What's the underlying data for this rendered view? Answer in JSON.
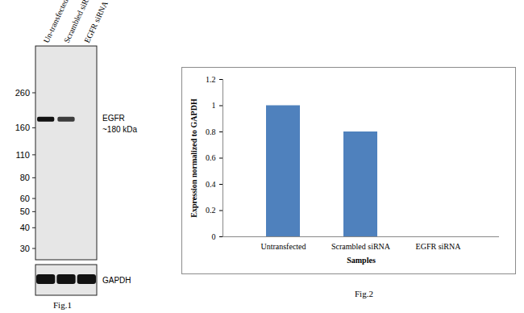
{
  "western_blot": {
    "lanes": [
      "Un-transfected",
      "Scrambled siRNA",
      "EGFR siRNA"
    ],
    "markers_kda": [
      260,
      160,
      110,
      80,
      60,
      50,
      40,
      30
    ],
    "band_label": [
      "EGFR",
      "~180 kDa"
    ],
    "band_kda": 180,
    "band_intensity": [
      1,
      0.8,
      0
    ],
    "loading_label": "GAPDH",
    "loading_intensity": [
      1,
      1,
      1
    ],
    "caption": "Fig.1"
  },
  "chart_data": {
    "type": "bar",
    "categories": [
      "Untransfected",
      "Scrambled siRNA",
      "EGFR siRNA"
    ],
    "values": [
      1,
      0.8,
      0
    ],
    "color": "#4f81bd",
    "xlabel": "Samples",
    "ylabel": "Expression normalized to GAPDH",
    "ylim": [
      0,
      1.2
    ],
    "yticks": [
      0,
      0.2,
      0.4,
      0.6,
      0.8,
      1,
      1.2
    ],
    "grid": false,
    "caption": "Fig.2"
  }
}
